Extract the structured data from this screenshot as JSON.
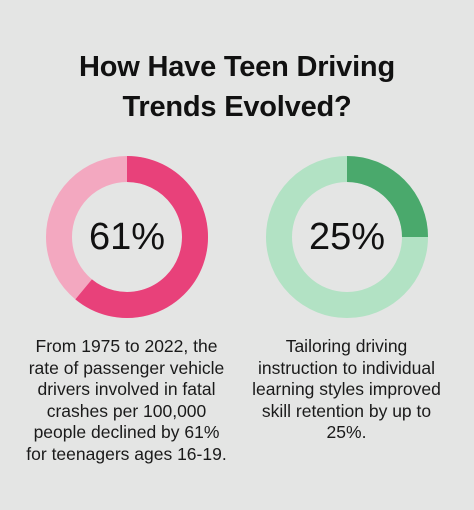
{
  "title_lines": [
    "How Have Teen Driving",
    "Trends Evolved?"
  ],
  "colors": {
    "background": "#e4e5e4",
    "pink_fill": "#e8417a",
    "pink_track": "#f3a8c0",
    "green_fill": "#4aa96c",
    "green_track": "#b2e2c4"
  },
  "chart_data": [
    {
      "type": "pie",
      "style": "donut",
      "value_percent": 61,
      "label": "61%",
      "caption": "From 1975 to 2022, the rate of passenger vehicle drivers involved in fatal crashes per 100,000 people declined by 61% for teenagers ages 16-19."
    },
    {
      "type": "pie",
      "style": "donut",
      "value_percent": 25,
      "label": "25%",
      "caption": "Tailoring driving instruction to individual learning styles improved skill retention by up to 25%."
    }
  ]
}
